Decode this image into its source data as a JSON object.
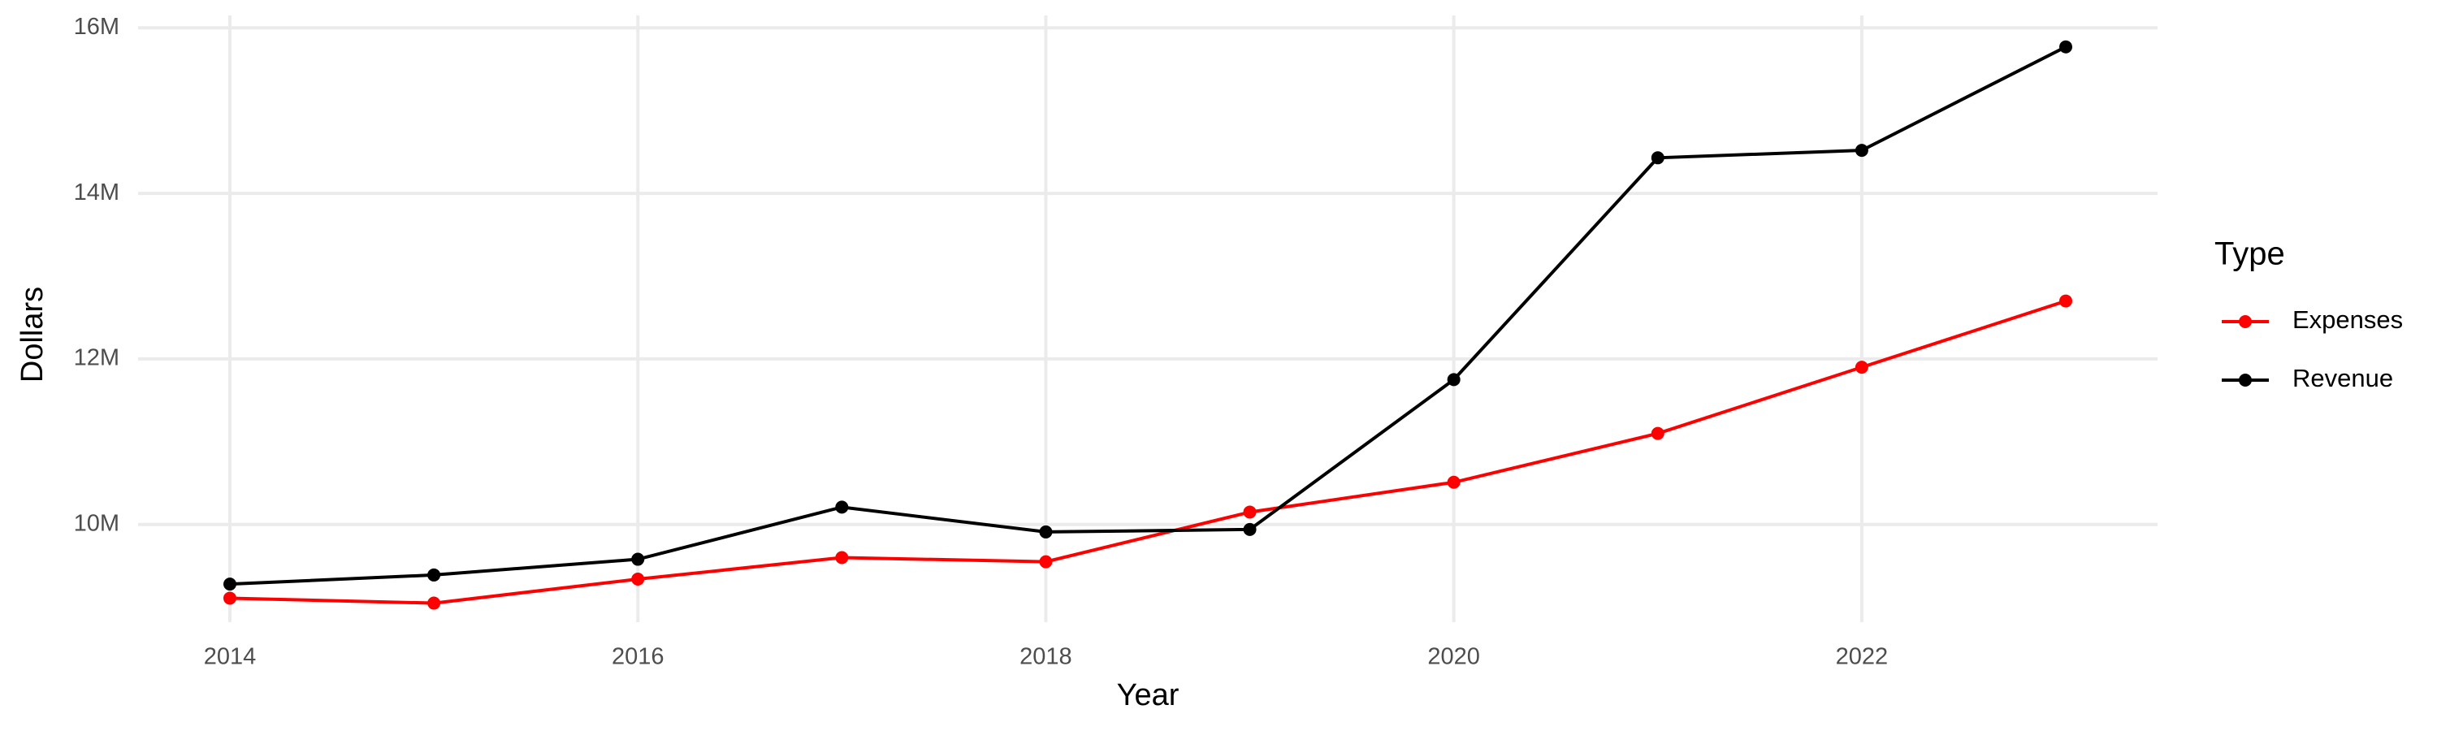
{
  "chart_data": {
    "type": "line",
    "x_label": "Year",
    "y_label": "Dollars",
    "legend_title": "Type",
    "x": [
      2014,
      2015,
      2016,
      2017,
      2018,
      2019,
      2020,
      2021,
      2022,
      2023
    ],
    "series": [
      {
        "name": "Expenses",
        "color": "#ff0000",
        "values": [
          9110000,
          9050000,
          9340000,
          9600000,
          9550000,
          10150000,
          10510000,
          11100000,
          11900000,
          12700000
        ]
      },
      {
        "name": "Revenue",
        "color": "#000000",
        "values": [
          9280000,
          9390000,
          9580000,
          10210000,
          9910000,
          9940000,
          11750000,
          14430000,
          14520000,
          15770000
        ]
      }
    ],
    "xlim": [
      2013.55,
      2023.45
    ],
    "ylim": [
      8820000,
      16150000
    ],
    "xticks": [
      2014,
      2016,
      2018,
      2020,
      2022
    ],
    "yticks": [
      {
        "value": 10000000,
        "label": "10M"
      },
      {
        "value": 12000000,
        "label": "12M"
      },
      {
        "value": 14000000,
        "label": "14M"
      },
      {
        "value": 16000000,
        "label": "16M"
      }
    ],
    "grid": true,
    "legend": "right"
  }
}
